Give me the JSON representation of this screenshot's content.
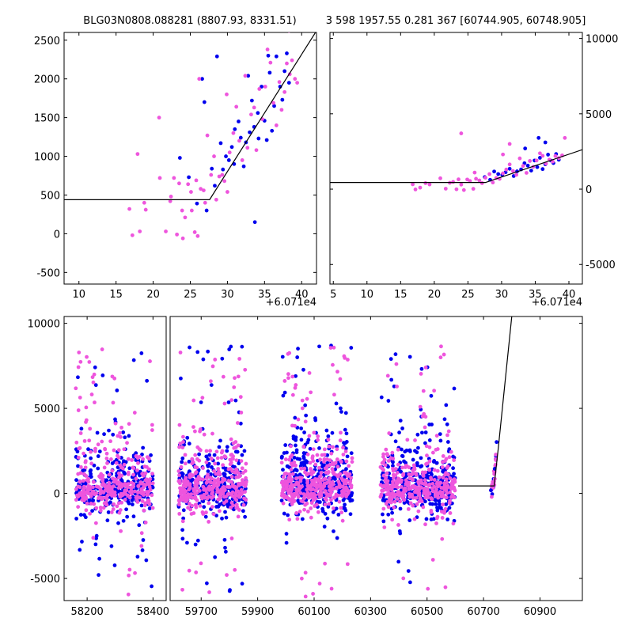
{
  "titles": {
    "left": "BLG03N0808.088281 (8807.93, 8331.51)",
    "right": "3 598 1957.55 0.281 367 [60744.905, 60748.905]"
  },
  "colors": {
    "series_a": "#0000ee",
    "series_b": "#ee55dd",
    "model": "#000000"
  },
  "chart_data": [
    {
      "id": "zoom-left",
      "type": "scatter",
      "title": "BLG03N0808.088281 (8807.93, 8331.51)",
      "x_offset_label": "+6.071e4",
      "xlim": [
        8,
        42
      ],
      "ylim": [
        -650,
        2600
      ],
      "xticks": [
        10,
        15,
        20,
        25,
        30,
        35,
        40
      ],
      "yticks": [
        -500,
        0,
        500,
        1000,
        1500,
        2000,
        2500
      ],
      "model": {
        "x": [
          8,
          27.6,
          42
        ],
        "y": [
          440,
          440,
          2620
        ]
      },
      "series": [
        {
          "name": "blue",
          "color": "#0000ee",
          "points": [
            [
              23.6,
              980
            ],
            [
              24.8,
              730
            ],
            [
              25.9,
              390
            ],
            [
              27.2,
              300
            ],
            [
              27.9,
              840
            ],
            [
              28.3,
              620
            ],
            [
              29.1,
              1170
            ],
            [
              29.4,
              830
            ],
            [
              29.8,
              1000
            ],
            [
              30.2,
              950
            ],
            [
              30.6,
              1120
            ],
            [
              31.0,
              1350
            ],
            [
              31.5,
              1450
            ],
            [
              31.8,
              1240
            ],
            [
              32.2,
              870
            ],
            [
              32.5,
              1180
            ],
            [
              33.0,
              1310
            ],
            [
              33.3,
              1720
            ],
            [
              33.6,
              1380
            ],
            [
              33.7,
              150
            ],
            [
              34.1,
              1560
            ],
            [
              34.2,
              1230
            ],
            [
              34.6,
              1900
            ],
            [
              35.0,
              1460
            ],
            [
              35.3,
              1210
            ],
            [
              35.7,
              2080
            ],
            [
              36.0,
              1330
            ],
            [
              36.3,
              1650
            ],
            [
              36.6,
              2290
            ],
            [
              37.1,
              1900
            ],
            [
              37.4,
              1730
            ],
            [
              37.7,
              2100
            ],
            [
              38.0,
              2330
            ],
            [
              38.3,
              1950
            ],
            [
              28.6,
              2290
            ],
            [
              26.6,
              2000
            ],
            [
              26.9,
              1700
            ],
            [
              30.9,
              900
            ],
            [
              32.8,
              2040
            ],
            [
              35.5,
              2300
            ],
            [
              33.5,
              2680
            ]
          ]
        },
        {
          "name": "magenta",
          "color": "#ee55dd",
          "points": [
            [
              16.8,
              320
            ],
            [
              17.2,
              -20
            ],
            [
              17.9,
              1030
            ],
            [
              18.2,
              30
            ],
            [
              18.8,
              400
            ],
            [
              19.0,
              310
            ],
            [
              20.8,
              1500
            ],
            [
              20.9,
              720
            ],
            [
              21.7,
              30
            ],
            [
              22.3,
              420
            ],
            [
              22.4,
              480
            ],
            [
              22.8,
              720
            ],
            [
              23.2,
              -10
            ],
            [
              23.5,
              650
            ],
            [
              23.9,
              300
            ],
            [
              24.0,
              -60
            ],
            [
              24.3,
              210
            ],
            [
              24.7,
              640
            ],
            [
              25.1,
              540
            ],
            [
              25.6,
              20
            ],
            [
              25.8,
              690
            ],
            [
              26.0,
              -30
            ],
            [
              26.2,
              2000
            ],
            [
              26.4,
              580
            ],
            [
              26.8,
              560
            ],
            [
              27.0,
              400
            ],
            [
              27.3,
              1270
            ],
            [
              27.8,
              760
            ],
            [
              28.2,
              1000
            ],
            [
              28.5,
              440
            ],
            [
              28.9,
              740
            ],
            [
              29.3,
              760
            ],
            [
              29.6,
              680
            ],
            [
              30.0,
              540
            ],
            [
              30.3,
              1050
            ],
            [
              30.8,
              1300
            ],
            [
              31.2,
              1640
            ],
            [
              31.6,
              1200
            ],
            [
              32.0,
              950
            ],
            [
              32.4,
              2040
            ],
            [
              32.7,
              1110
            ],
            [
              33.2,
              1540
            ],
            [
              33.6,
              1630
            ],
            [
              33.9,
              1080
            ],
            [
              34.3,
              1870
            ],
            [
              34.7,
              1480
            ],
            [
              35.1,
              1900
            ],
            [
              35.4,
              2380
            ],
            [
              35.8,
              2210
            ],
            [
              36.2,
              1690
            ],
            [
              36.6,
              1400
            ],
            [
              37.0,
              1960
            ],
            [
              37.3,
              1600
            ],
            [
              37.7,
              1830
            ],
            [
              38.0,
              2200
            ],
            [
              38.4,
              2060
            ],
            [
              38.7,
              2240
            ],
            [
              39.1,
              2000
            ],
            [
              39.4,
              1950
            ],
            [
              38.3,
              2620
            ],
            [
              36.8,
              2690
            ],
            [
              29.9,
              1800
            ],
            [
              25.2,
              300
            ]
          ]
        }
      ]
    },
    {
      "id": "zoom-right",
      "type": "scatter",
      "title": "3 598 1957.55 0.281 367 [60744.905, 60748.905]",
      "x_offset_label": "+6.071e4",
      "xlim": [
        4.5,
        42
      ],
      "ylim": [
        -6300,
        10400
      ],
      "xticks": [
        5,
        10,
        15,
        20,
        25,
        30,
        35,
        40
      ],
      "yticks": [
        -5000,
        0,
        5000,
        10000
      ],
      "model": {
        "x": [
          4.5,
          27.6,
          42
        ],
        "y": [
          440,
          440,
          2620
        ]
      },
      "series": [
        {
          "name": "blue",
          "color": "#0000ee",
          "points": [
            [
              27.5,
              800
            ],
            [
              28.3,
              620
            ],
            [
              28.9,
              1170
            ],
            [
              29.5,
              1000
            ],
            [
              30.1,
              950
            ],
            [
              30.6,
              1120
            ],
            [
              31.2,
              1350
            ],
            [
              31.8,
              870
            ],
            [
              32.3,
              1180
            ],
            [
              32.9,
              1310
            ],
            [
              33.4,
              1720
            ],
            [
              33.9,
              1560
            ],
            [
              34.4,
              1230
            ],
            [
              34.9,
              1900
            ],
            [
              35.3,
              1460
            ],
            [
              35.7,
              2080
            ],
            [
              36.1,
              1330
            ],
            [
              36.5,
              1650
            ],
            [
              36.9,
              2290
            ],
            [
              37.3,
              1900
            ],
            [
              37.7,
              1730
            ],
            [
              38.1,
              2330
            ],
            [
              38.5,
              1950
            ],
            [
              35.5,
              3400
            ],
            [
              33.5,
              2700
            ],
            [
              36.5,
              3100
            ]
          ]
        },
        {
          "name": "magenta",
          "color": "#ee55dd",
          "points": [
            [
              16.8,
              320
            ],
            [
              17.2,
              -20
            ],
            [
              17.9,
              100
            ],
            [
              18.7,
              400
            ],
            [
              19.3,
              310
            ],
            [
              20.9,
              720
            ],
            [
              21.7,
              30
            ],
            [
              22.3,
              420
            ],
            [
              22.8,
              480
            ],
            [
              23.3,
              -10
            ],
            [
              23.6,
              650
            ],
            [
              24.0,
              300
            ],
            [
              24.4,
              -60
            ],
            [
              24.9,
              640
            ],
            [
              25.3,
              540
            ],
            [
              25.8,
              20
            ],
            [
              26.2,
              690
            ],
            [
              26.7,
              580
            ],
            [
              27.1,
              400
            ],
            [
              27.6,
              760
            ],
            [
              28.2,
              1000
            ],
            [
              28.7,
              440
            ],
            [
              29.2,
              740
            ],
            [
              29.7,
              680
            ],
            [
              30.2,
              1050
            ],
            [
              30.7,
              1300
            ],
            [
              31.2,
              1640
            ],
            [
              31.7,
              1200
            ],
            [
              32.2,
              950
            ],
            [
              32.7,
              2040
            ],
            [
              33.2,
              1540
            ],
            [
              33.7,
              1080
            ],
            [
              34.2,
              1870
            ],
            [
              34.7,
              1480
            ],
            [
              35.2,
              1900
            ],
            [
              35.7,
              2380
            ],
            [
              36.1,
              2210
            ],
            [
              36.6,
              1690
            ],
            [
              37.1,
              1960
            ],
            [
              37.6,
              1830
            ],
            [
              38.0,
              2200
            ],
            [
              38.5,
              2060
            ],
            [
              39.0,
              2240
            ],
            [
              39.4,
              3400
            ],
            [
              24.0,
              3700
            ],
            [
              31.2,
              3000
            ],
            [
              26.0,
              1100
            ],
            [
              30.2,
              2300
            ]
          ]
        }
      ]
    },
    {
      "id": "full-lightcurve",
      "type": "scatter",
      "x_offset_label": "",
      "ylim": [
        -6300,
        10400
      ],
      "yticks": [
        -5000,
        0,
        5000,
        10000
      ],
      "segments": [
        {
          "xlim": [
            58130,
            58440
          ],
          "xticks": [
            58200,
            58400
          ]
        },
        {
          "xlim": [
            59590,
            61050
          ],
          "xticks": [
            59700,
            59900,
            60100,
            60300,
            60500,
            60700,
            60900
          ]
        }
      ],
      "seasons": [
        {
          "x0": 58165,
          "x1": 58400,
          "n_blue": 320,
          "n_magenta": 320,
          "spread": 1400,
          "tail": 7000
        },
        {
          "x0": 59620,
          "x1": 59860,
          "n_blue": 360,
          "n_magenta": 340,
          "spread": 1300,
          "tail": 7200
        },
        {
          "x0": 59985,
          "x1": 60235,
          "n_blue": 380,
          "n_magenta": 360,
          "spread": 1300,
          "tail": 7200
        },
        {
          "x0": 60335,
          "x1": 60600,
          "n_blue": 370,
          "n_magenta": 350,
          "spread": 1300,
          "tail": 7200
        }
      ],
      "event": {
        "x0": 60726,
        "x1": 60749,
        "y0": 0,
        "y1": 3800
      },
      "model": {
        "x": [
          60610,
          60737.6,
          60752,
          60800
        ],
        "y": [
          440,
          440,
          2620,
          10400
        ]
      }
    }
  ],
  "outliers_note": "",
  "seed": 20240613
}
